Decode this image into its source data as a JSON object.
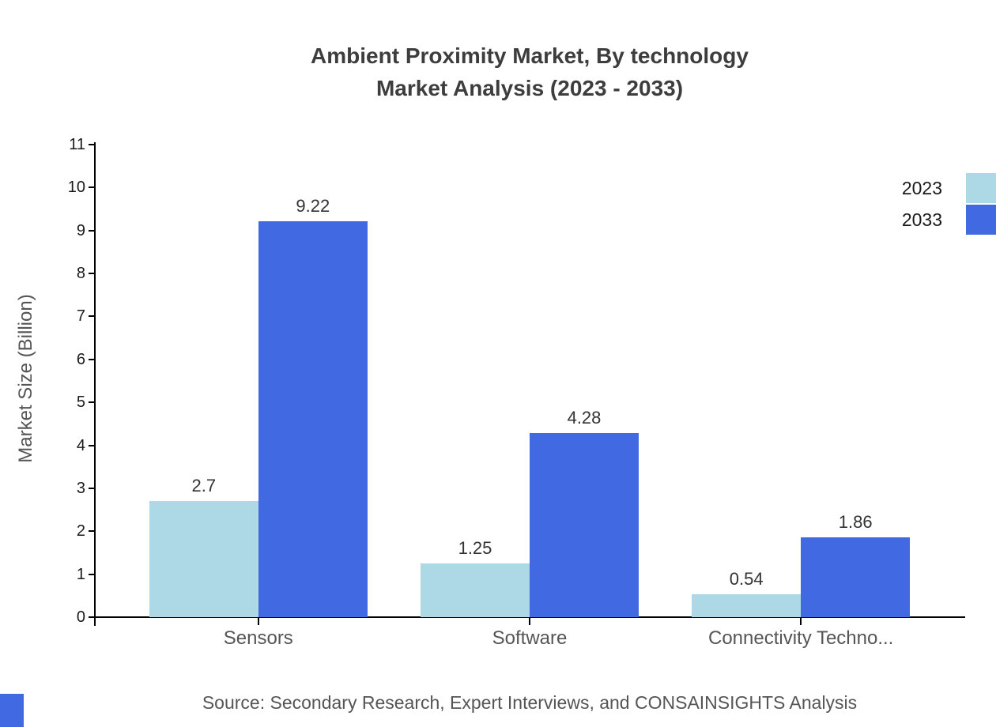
{
  "title": {
    "line1": "Ambient Proximity Market, By technology",
    "line2": "Market Analysis (2023 - 2033)"
  },
  "source": "Source: Secondary Research, Expert Interviews, and CONSAINSIGHTS Analysis",
  "chart_data": {
    "type": "bar",
    "title": "Ambient Proximity Market, By technology Market Analysis (2023 - 2033)",
    "categories": [
      "Sensors",
      "Software",
      "Connectivity Techno..."
    ],
    "series": [
      {
        "name": "2023",
        "color": "#ADD8E6",
        "values": [
          2.7,
          1.25,
          0.54
        ]
      },
      {
        "name": "2033",
        "color": "#4169E1",
        "values": [
          9.22,
          4.28,
          1.86
        ]
      }
    ],
    "xlabel": "",
    "ylabel": "Market Size (Billion)",
    "ylim": [
      0,
      11
    ],
    "ytick_step": 1,
    "grid": false,
    "legend_position": "top-right"
  },
  "colors": {
    "series_2023": "#ADD8E6",
    "series_2033": "#4169E1",
    "axis": "#000000",
    "title_text": "#3d3d3d",
    "muted_text": "#555555",
    "value_text": "#333333",
    "background": "#ffffff",
    "corner_mark": "#4169E1"
  }
}
